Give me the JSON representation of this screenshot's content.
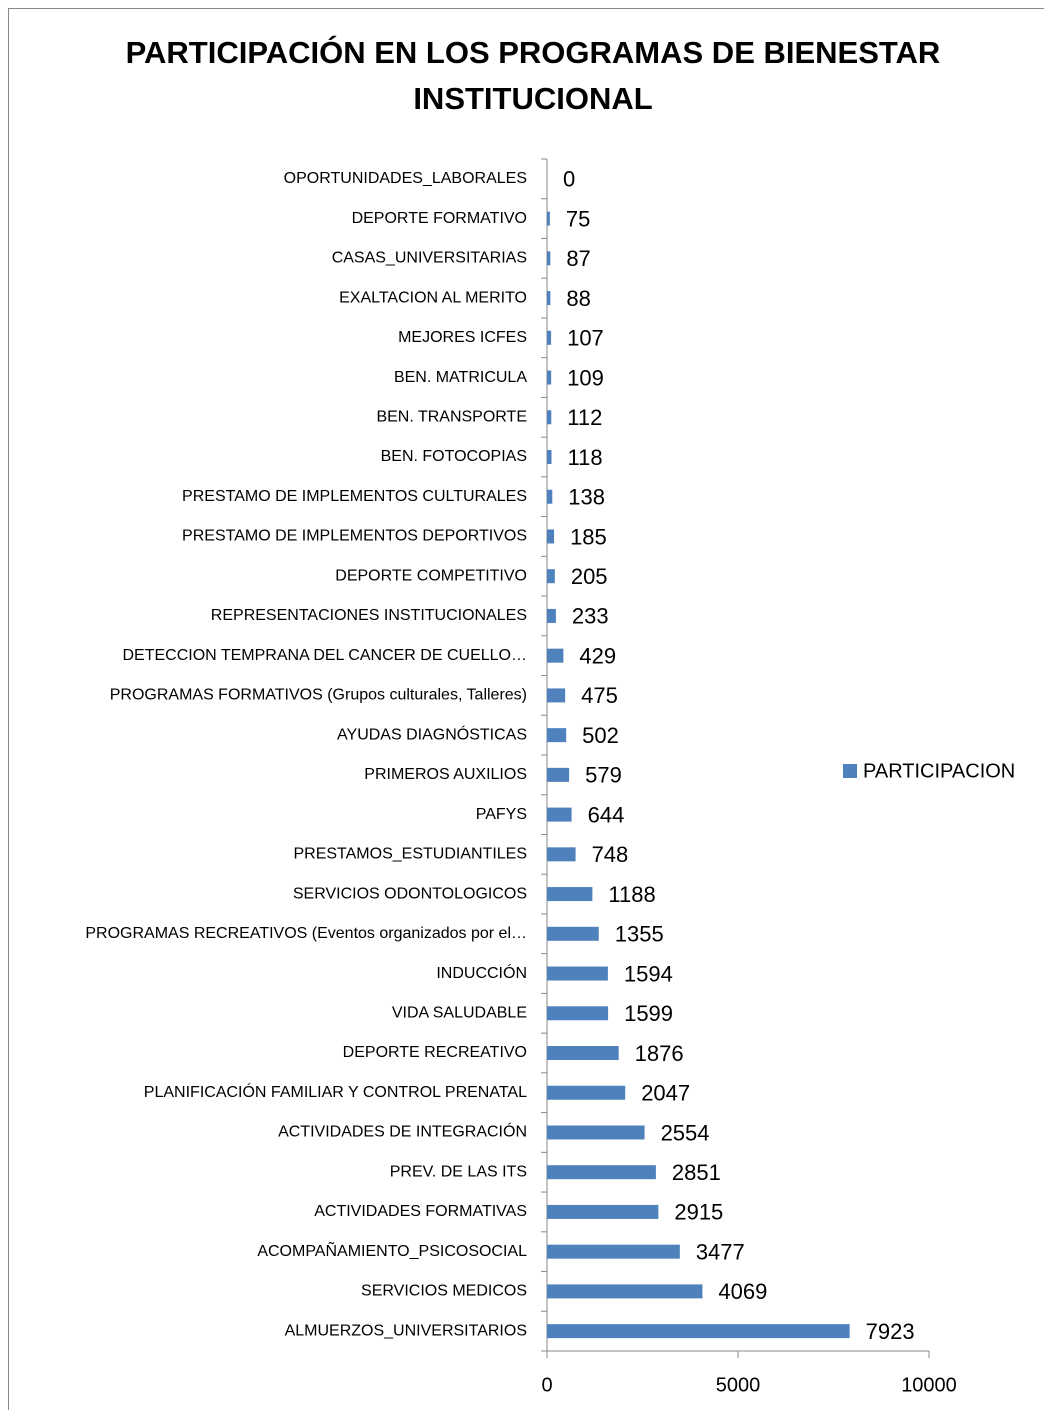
{
  "chart_data": {
    "type": "bar",
    "orientation": "horizontal",
    "title": "PARTICIPACIÓN EN LOS PROGRAMAS DE BIENESTAR INSTITUCIONAL",
    "categories": [
      "OPORTUNIDADES_LABORALES",
      "DEPORTE FORMATIVO",
      "CASAS_UNIVERSITARIAS",
      "EXALTACION AL MERITO",
      "MEJORES ICFES",
      "BEN. MATRICULA",
      "BEN. TRANSPORTE",
      "BEN. FOTOCOPIAS",
      "PRESTAMO DE IMPLEMENTOS CULTURALES",
      "PRESTAMO DE IMPLEMENTOS DEPORTIVOS",
      "DEPORTE COMPETITIVO",
      "REPRESENTACIONES INSTITUCIONALES",
      "DETECCION TEMPRANA DEL CANCER DE CUELLO…",
      "PROGRAMAS FORMATIVOS (Grupos culturales, Talleres)",
      "AYUDAS DIAGNÓSTICAS",
      "PRIMEROS AUXILIOS",
      "PAFYS",
      "PRESTAMOS_ESTUDIANTILES",
      "SERVICIOS ODONTOLOGICOS",
      "PROGRAMAS RECREATIVOS (Eventos organizados por el…",
      "INDUCCIÓN",
      "VIDA SALUDABLE",
      "DEPORTE RECREATIVO",
      "PLANIFICACIÓN FAMILIAR Y CONTROL PRENATAL",
      "ACTIVIDADES DE INTEGRACIÓN",
      "PREV. DE LAS ITS",
      "ACTIVIDADES FORMATIVAS",
      "ACOMPAÑAMIENTO_PSICOSOCIAL",
      "SERVICIOS MEDICOS",
      "ALMUERZOS_UNIVERSITARIOS"
    ],
    "series": [
      {
        "name": "PARTICIPACION",
        "color": "#4f81bd",
        "values": [
          0,
          75,
          87,
          88,
          107,
          109,
          112,
          118,
          138,
          185,
          205,
          233,
          429,
          475,
          502,
          579,
          644,
          748,
          1188,
          1355,
          1594,
          1599,
          1876,
          2047,
          2554,
          2851,
          2915,
          3477,
          4069,
          7923
        ]
      }
    ],
    "xlim": [
      0,
      10000
    ],
    "xticks": [
      0,
      5000,
      10000
    ],
    "legend": "right"
  }
}
